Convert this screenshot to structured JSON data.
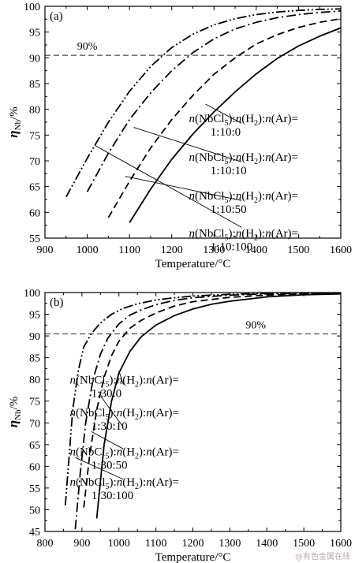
{
  "chart_data": [
    {
      "panel_label": "(a)",
      "type": "line",
      "xlabel": "Temperature/°C",
      "ylabel_main": "η",
      "ylabel_sub": "Nb",
      "ylabel_unit": "/%",
      "xlim": [
        900,
        1600
      ],
      "ylim": [
        55,
        100
      ],
      "xticks": [
        900,
        1000,
        1100,
        1200,
        1300,
        1400,
        1500,
        1600
      ],
      "yticks": [
        55,
        60,
        65,
        70,
        75,
        80,
        85,
        90,
        95,
        100
      ],
      "reference_line": {
        "y": 90.5,
        "label": "90%",
        "label_x": 1000
      },
      "legend_prefix_parts": [
        "n",
        "(NbCl",
        "5",
        "):",
        "n",
        "(H",
        "2",
        "):",
        "n",
        "(Ar)="
      ],
      "series": [
        {
          "ratio": "1:10:0",
          "style": "solid",
          "x": [
            1100,
            1150,
            1200,
            1250,
            1300,
            1350,
            1400,
            1450,
            1500,
            1550,
            1600
          ],
          "y": [
            58,
            64.5,
            70.3,
            75.2,
            79.5,
            83.4,
            86.9,
            89.9,
            92.3,
            94.2,
            95.8
          ]
        },
        {
          "ratio": "1:10:10",
          "style": "dashed",
          "x": [
            1050,
            1100,
            1150,
            1200,
            1250,
            1300,
            1350,
            1400,
            1450,
            1500,
            1550,
            1600
          ],
          "y": [
            59,
            66,
            72.5,
            78,
            82.7,
            86.8,
            90,
            92.7,
            94.5,
            95.9,
            96.9,
            97.6
          ]
        },
        {
          "ratio": "1:10:50",
          "style": "dash-dot",
          "x": [
            1000,
            1050,
            1100,
            1150,
            1200,
            1250,
            1300,
            1350,
            1400,
            1450,
            1500,
            1550,
            1600
          ],
          "y": [
            64,
            71.5,
            78,
            83.2,
            87.5,
            91,
            93.7,
            95.6,
            96.9,
            97.8,
            98.4,
            98.8,
            99.1
          ]
        },
        {
          "ratio": "1:10:100",
          "style": "dash-dot-dot",
          "x": [
            950,
            1000,
            1050,
            1100,
            1150,
            1200,
            1250,
            1300,
            1350,
            1400,
            1450,
            1500,
            1550,
            1600
          ],
          "y": [
            63,
            70.5,
            77.5,
            83.5,
            88.3,
            92,
            94.6,
            96.4,
            97.6,
            98.4,
            98.9,
            99.2,
            99.4,
            99.5
          ]
        }
      ],
      "annotations": [
        {
          "label_index": 0,
          "point": [
            1280,
            81
          ],
          "label_anchor": [
            1370,
            77.5
          ],
          "line_end": [
            1365,
            77.3
          ]
        },
        {
          "label_index": 1,
          "point": [
            1110,
            76.5
          ],
          "label_anchor": [
            1370,
            70
          ],
          "line_end": [
            1365,
            69.8
          ]
        },
        {
          "label_index": 2,
          "point": [
            1090,
            67
          ],
          "label_anchor": [
            1370,
            62.5
          ],
          "line_end": [
            1365,
            62.3
          ]
        },
        {
          "label_index": 3,
          "point": [
            1018,
            73
          ],
          "label_anchor": [
            1370,
            55.2
          ],
          "line_end": [
            1365,
            57.1
          ]
        }
      ]
    },
    {
      "panel_label": "(b)",
      "type": "line",
      "xlabel": "Temperature/°C",
      "ylabel_main": "η",
      "ylabel_sub": "Nb",
      "ylabel_unit": "/%",
      "xlim": [
        800,
        1600
      ],
      "ylim": [
        45,
        100
      ],
      "xticks": [
        800,
        900,
        1000,
        1100,
        1200,
        1300,
        1400,
        1500,
        1600
      ],
      "yticks": [
        45,
        50,
        55,
        60,
        65,
        70,
        75,
        80,
        85,
        90,
        95,
        100
      ],
      "reference_line": {
        "y": 90.5,
        "label": "90%",
        "label_x": 1370
      },
      "legend_prefix_parts": [
        "n",
        "(NbCl",
        "5",
        "):",
        "n",
        "(H",
        "2",
        "):",
        "n",
        "(Ar)="
      ],
      "series": [
        {
          "ratio": "1:30:0",
          "style": "solid",
          "x": [
            940,
            960,
            980,
            1000,
            1030,
            1060,
            1100,
            1150,
            1200,
            1250,
            1300,
            1400,
            1500,
            1600
          ],
          "y": [
            48,
            65,
            75,
            81.5,
            86.5,
            89.8,
            92.5,
            94.7,
            96.2,
            97.3,
            98,
            99,
            99.5,
            99.7
          ]
        },
        {
          "ratio": "1:30:10",
          "style": "dashed",
          "x": [
            905,
            920,
            940,
            960,
            980,
            1000,
            1030,
            1060,
            1100,
            1150,
            1200,
            1300,
            1400,
            1500,
            1600
          ],
          "y": [
            50.5,
            62,
            73,
            80.5,
            85.5,
            88.8,
            91.8,
            93.6,
            95.3,
            96.9,
            97.9,
            98.9,
            99.4,
            99.7,
            99.8
          ]
        },
        {
          "ratio": "1:30:50",
          "style": "dash-dot",
          "x": [
            882,
            895,
            910,
            930,
            950,
            970,
            1000,
            1030,
            1060,
            1100,
            1150,
            1200,
            1300,
            1400,
            1500,
            1600
          ],
          "y": [
            45.5,
            58,
            70,
            80,
            85.8,
            89.5,
            92.8,
            94.8,
            96,
            97.2,
            98.2,
            98.8,
            99.4,
            99.7,
            99.8,
            99.9
          ]
        },
        {
          "ratio": "1:30:100",
          "style": "dash-dot-dot",
          "x": [
            855,
            865,
            875,
            890,
            905,
            925,
            950,
            980,
            1010,
            1050,
            1100,
            1150,
            1200,
            1300,
            1400,
            1500,
            1600
          ],
          "y": [
            51,
            62,
            73,
            82,
            87.5,
            90.5,
            93,
            95,
            96.3,
            97.4,
            98.3,
            98.8,
            99.2,
            99.6,
            99.8,
            99.9,
            99.9
          ]
        }
      ],
      "annotations": [
        {
          "label_index": 0,
          "point": [
            1000,
            82
          ],
          "label_anchor": [
            1015,
            79
          ],
          "line_end": [
            1012,
            78.8
          ]
        },
        {
          "label_index": 1,
          "point": [
            952,
            76
          ],
          "label_anchor": [
            1015,
            71.5
          ],
          "line_end": [
            1012,
            69
          ]
        },
        {
          "label_index": 2,
          "point": [
            925,
            68
          ],
          "label_anchor": [
            1015,
            62.5
          ],
          "line_end": [
            1012,
            64
          ]
        },
        {
          "label_index": 3,
          "point": [
            882,
            62
          ],
          "label_anchor": [
            1015,
            55.5
          ],
          "line_end": [
            1012,
            57
          ]
        }
      ]
    }
  ],
  "watermark": "@有色金属在线"
}
